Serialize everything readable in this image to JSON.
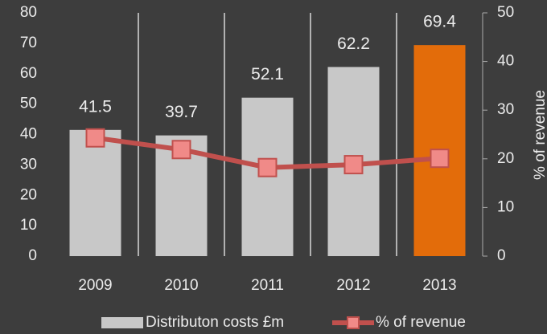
{
  "chart_data": {
    "type": "bar",
    "categories": [
      "2009",
      "2010",
      "2011",
      "2012",
      "2013"
    ],
    "series": [
      {
        "name": "Distributon costs £m",
        "type": "bar",
        "color": "#c8c8c8",
        "colors": [
          "#c8c8c8",
          "#c8c8c8",
          "#c8c8c8",
          "#c8c8c8",
          "#e36c0a"
        ],
        "values": [
          41.5,
          39.7,
          52.1,
          62.2,
          69.4
        ]
      },
      {
        "name": "% of revenue",
        "type": "line",
        "axis": "y2",
        "color": "#c0504d",
        "values": [
          24.3,
          21.9,
          18.2,
          18.8,
          20.1
        ]
      }
    ],
    "ylim": [
      0,
      80
    ],
    "yticks": [
      0,
      10,
      20,
      30,
      40,
      50,
      60,
      70,
      80
    ],
    "y2lim": [
      0,
      50
    ],
    "y2ticks": [
      0,
      10,
      20,
      30,
      40,
      50
    ],
    "y2label": "% of revenue",
    "x_grid": true,
    "legend": "bottom"
  }
}
